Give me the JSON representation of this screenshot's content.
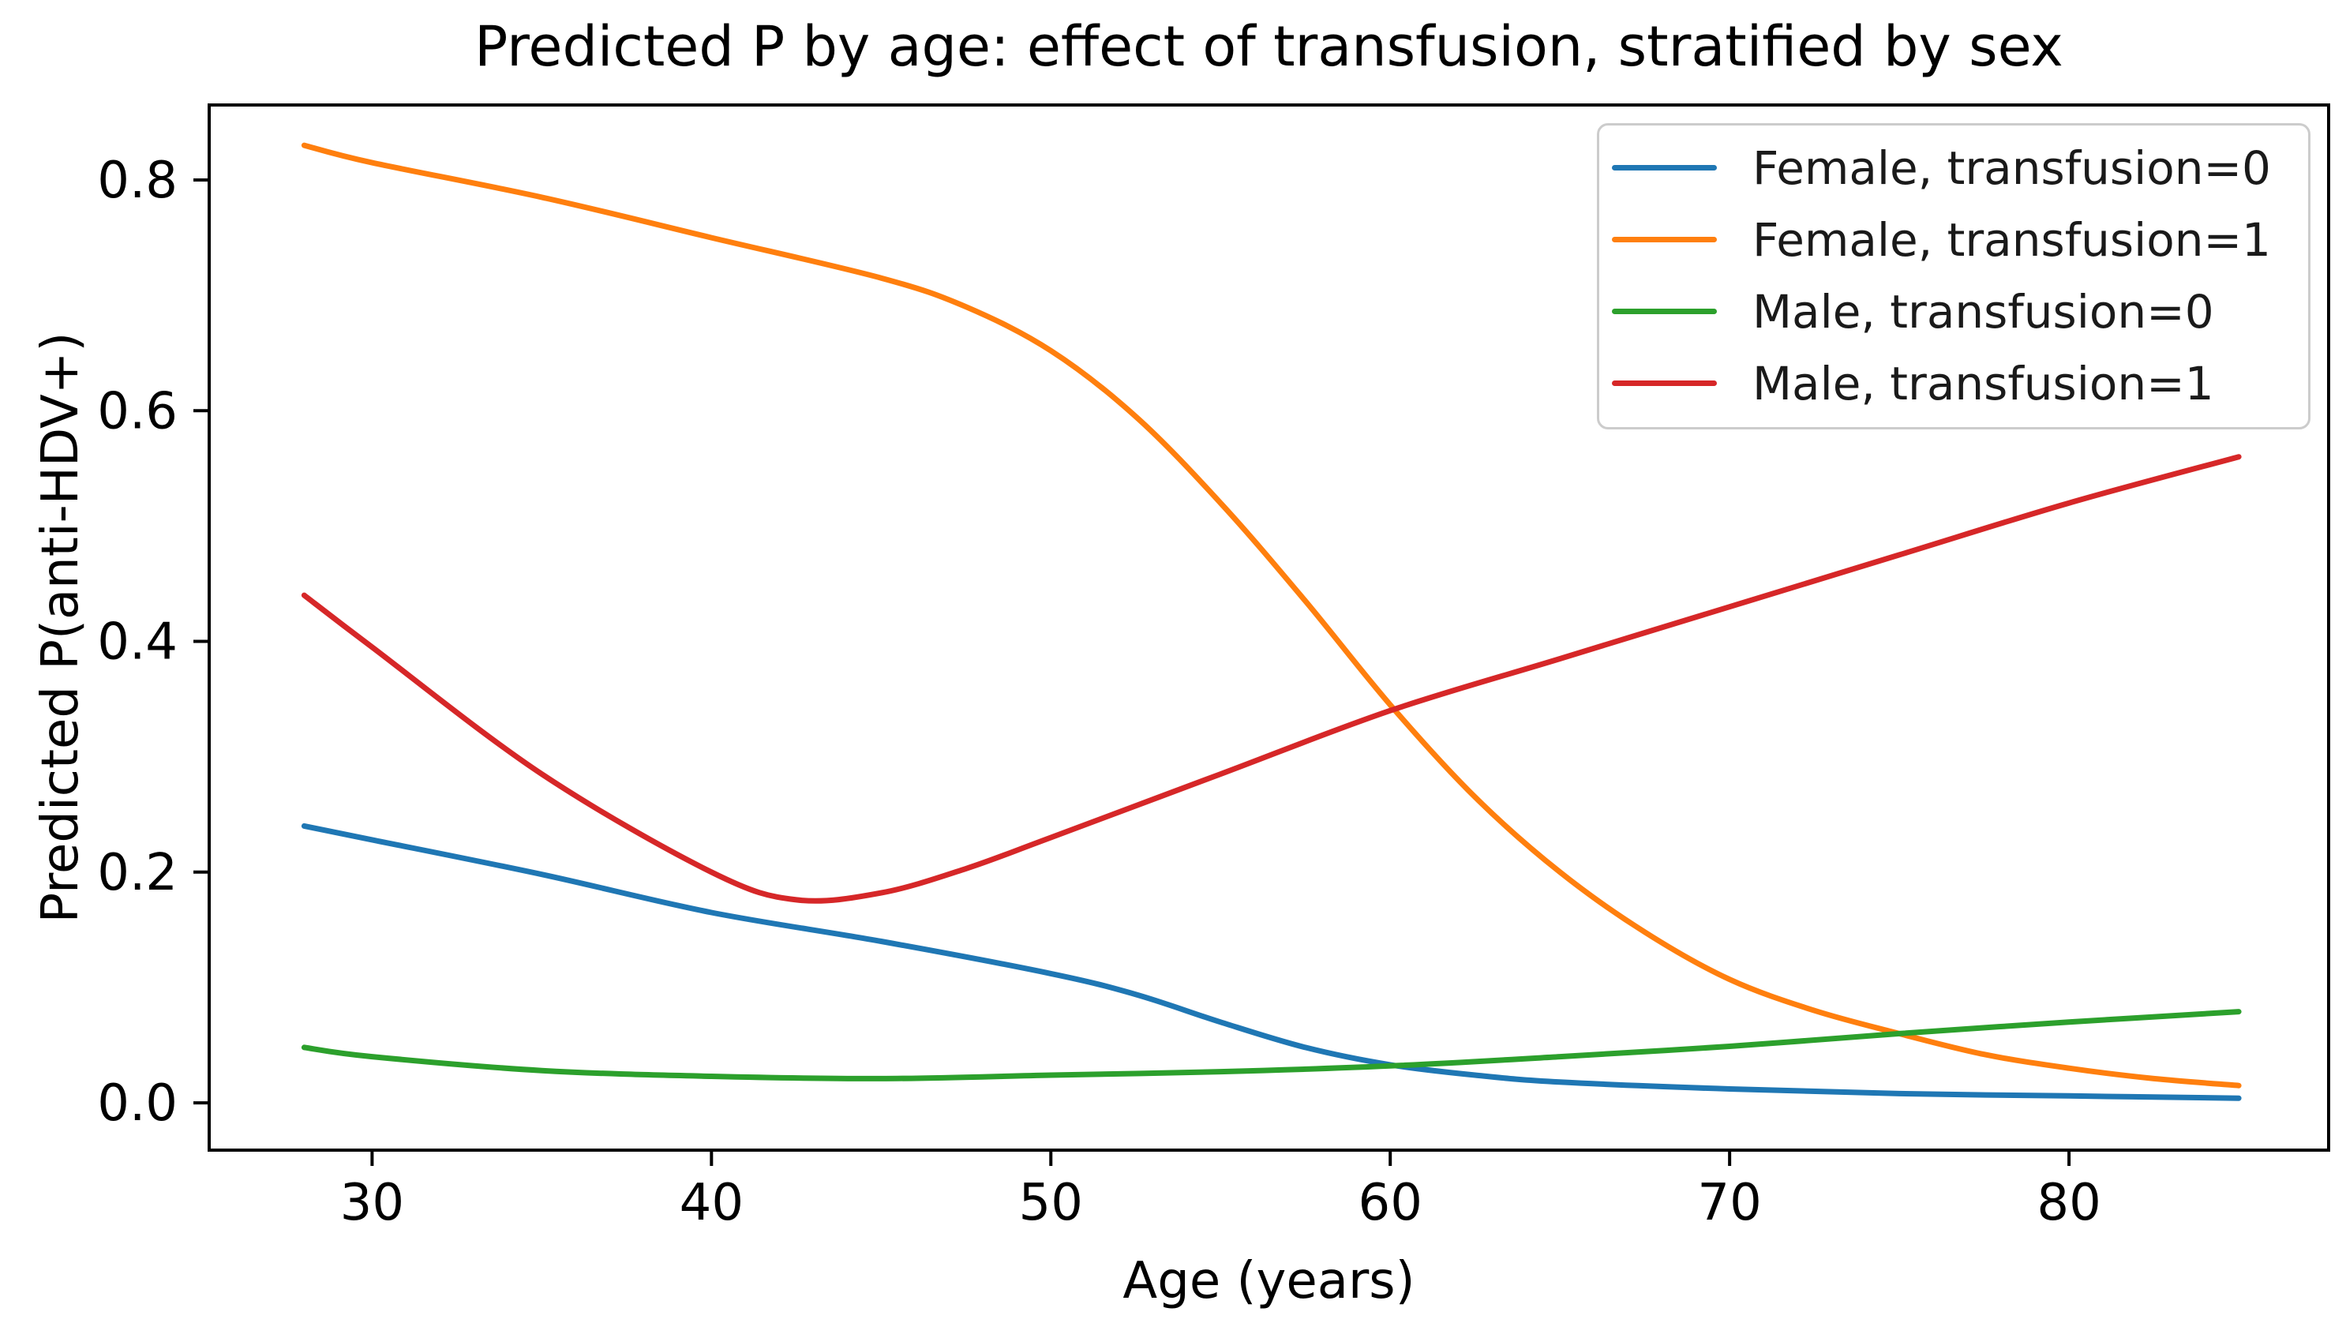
{
  "figure": {
    "background": "#ffffff",
    "spine_color": "#000000",
    "curve_stroke_width": 7
  },
  "chart_data": {
    "type": "line",
    "title": "Predicted P by age: effect of transfusion, stratified by sex",
    "xlabel": "Age (years)",
    "ylabel": "Predicted P(anti-HDV+)",
    "xlim": [
      25.2,
      87.65
    ],
    "ylim": [
      -0.041,
      0.865
    ],
    "x_ticks": [
      30,
      40,
      50,
      60,
      70,
      80
    ],
    "y_ticks": [
      "0.0",
      "0.2",
      "0.4",
      "0.6",
      "0.8"
    ],
    "grid": false,
    "legend_position": "upper right",
    "series": [
      {
        "name": "Female, transfusion=0",
        "color": "#1f77b4",
        "points": [
          [
            28,
            0.24
          ],
          [
            30,
            0.228
          ],
          [
            35,
            0.198
          ],
          [
            40,
            0.165
          ],
          [
            45,
            0.14
          ],
          [
            50,
            0.112
          ],
          [
            52.5,
            0.094
          ],
          [
            55,
            0.07
          ],
          [
            57.5,
            0.048
          ],
          [
            60,
            0.033
          ],
          [
            62.5,
            0.024
          ],
          [
            65,
            0.018
          ],
          [
            70,
            0.012
          ],
          [
            75,
            0.008
          ],
          [
            80,
            0.006
          ],
          [
            85,
            0.004
          ]
        ]
      },
      {
        "name": "Female, transfusion=1",
        "color": "#ff7f0e",
        "points": [
          [
            28,
            0.83
          ],
          [
            30,
            0.815
          ],
          [
            35,
            0.785
          ],
          [
            40,
            0.75
          ],
          [
            45,
            0.715
          ],
          [
            47.5,
            0.69
          ],
          [
            50,
            0.652
          ],
          [
            52.5,
            0.595
          ],
          [
            55,
            0.52
          ],
          [
            57.5,
            0.435
          ],
          [
            60,
            0.345
          ],
          [
            62.5,
            0.265
          ],
          [
            65,
            0.2
          ],
          [
            67.5,
            0.148
          ],
          [
            70,
            0.107
          ],
          [
            72.5,
            0.08
          ],
          [
            75,
            0.06
          ],
          [
            77.5,
            0.042
          ],
          [
            80,
            0.03
          ],
          [
            82.5,
            0.021
          ],
          [
            85,
            0.015
          ]
        ]
      },
      {
        "name": "Male, transfusion=0",
        "color": "#2ca02c",
        "points": [
          [
            28,
            0.048
          ],
          [
            30,
            0.04
          ],
          [
            35,
            0.028
          ],
          [
            40,
            0.023
          ],
          [
            45,
            0.021
          ],
          [
            50,
            0.024
          ],
          [
            55,
            0.027
          ],
          [
            60,
            0.032
          ],
          [
            65,
            0.04
          ],
          [
            70,
            0.049
          ],
          [
            75,
            0.06
          ],
          [
            80,
            0.07
          ],
          [
            85,
            0.079
          ]
        ]
      },
      {
        "name": "Male, transfusion=1",
        "color": "#d62728",
        "points": [
          [
            28,
            0.44
          ],
          [
            30,
            0.395
          ],
          [
            35,
            0.285
          ],
          [
            40,
            0.2
          ],
          [
            42.5,
            0.176
          ],
          [
            45,
            0.182
          ],
          [
            47.5,
            0.203
          ],
          [
            50,
            0.23
          ],
          [
            55,
            0.285
          ],
          [
            60,
            0.34
          ],
          [
            65,
            0.385
          ],
          [
            70,
            0.43
          ],
          [
            75,
            0.475
          ],
          [
            80,
            0.52
          ],
          [
            85,
            0.56
          ]
        ]
      }
    ]
  }
}
